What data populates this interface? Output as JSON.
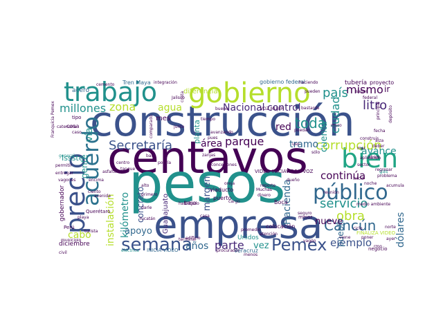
{
  "words": [
    {
      "text": "construcción",
      "color": "#3b528b"
    },
    {
      "text": "centavos",
      "color": "#440154"
    },
    {
      "text": "pesos",
      "color": "#21918c"
    },
    {
      "text": "empresa",
      "color": "#3b528b"
    },
    {
      "text": "trabajo",
      "color": "#21918c"
    },
    {
      "text": "gobierno",
      "color": "#b5de2b"
    },
    {
      "text": "bien",
      "color": "#21a585"
    },
    {
      "text": "precio",
      "color": "#3b528b"
    },
    {
      "text": "acuerdo",
      "color": "#2c728e"
    },
    {
      "text": "público",
      "color": "#31688e"
    },
    {
      "text": "semana",
      "color": "#3b528b"
    },
    {
      "text": "Pemex",
      "color": "#3b528b"
    },
    {
      "text": "parte",
      "color": "#482878"
    },
    {
      "text": "Cancún",
      "color": "#31688e"
    },
    {
      "text": "servicio",
      "color": "#21918c"
    },
    {
      "text": "obra",
      "color": "#b5de2b"
    },
    {
      "text": "corrupción",
      "color": "#b5de2b"
    },
    {
      "text": "Secretaría",
      "color": "#3b528b"
    },
    {
      "text": "toda",
      "color": "#21918c"
    },
    {
      "text": "país",
      "color": "#21918c"
    },
    {
      "text": "mismo",
      "color": "#440154"
    },
    {
      "text": "litro",
      "color": "#482878"
    },
    {
      "text": "millones",
      "color": "#21918c"
    },
    {
      "text": "zona",
      "color": "#b5de2b"
    },
    {
      "text": "agua",
      "color": "#b5de2b"
    },
    {
      "text": "Nacional",
      "color": "#482878"
    },
    {
      "text": "control",
      "color": "#482878"
    },
    {
      "text": "parque",
      "color": "#440154"
    },
    {
      "text": "área",
      "color": "#440154"
    },
    {
      "text": "red",
      "color": "#440154"
    },
    {
      "text": "ciudad",
      "color": "#21918c"
    },
    {
      "text": "tramo",
      "color": "#31688e"
    },
    {
      "text": "avance",
      "color": "#21918c"
    },
    {
      "text": "continúa",
      "color": "#440154"
    },
    {
      "text": "cuenta",
      "color": "#21918c"
    },
    {
      "text": "Hacienda",
      "color": "#31688e"
    },
    {
      "text": "margen",
      "color": "#3b528b"
    },
    {
      "text": "instalación",
      "color": "#b5de2b"
    },
    {
      "text": "kilómetro",
      "color": "#21918c"
    },
    {
      "text": "vía",
      "color": "#21918c"
    },
    {
      "text": "concreto",
      "color": "#3b528b"
    },
    {
      "text": "gente",
      "color": "#21918c"
    },
    {
      "text": "apoyo",
      "color": "#31688e"
    },
    {
      "text": "cabo",
      "color": "#b5de2b"
    },
    {
      "text": "años",
      "color": "#31688e"
    },
    {
      "text": "vez",
      "color": "#21918c"
    },
    {
      "text": "ejemplo",
      "color": "#3b528b"
    },
    {
      "text": "nueve",
      "color": "#440154"
    },
    {
      "text": "pueblo",
      "color": "#31688e"
    },
    {
      "text": "dólares",
      "color": "#31688e"
    },
    {
      "text": "ir",
      "color": "#440154"
    },
    {
      "text": "Issste",
      "color": "#21918c"
    },
    {
      "text": "acero",
      "color": "#31688e"
    },
    {
      "text": "Tren Maya",
      "color": "#31688e"
    },
    {
      "text": "diferencia",
      "color": "#b5de2b"
    },
    {
      "text": "gobierno federal",
      "color": "#31688e"
    },
    {
      "text": "tubería",
      "color": "#440154"
    },
    {
      "text": "proyecto",
      "color": "#440154"
    },
    {
      "text": "mes",
      "color": "#440154"
    },
    {
      "text": "Guanajuato",
      "color": "#482878"
    },
    {
      "text": "Querétaro",
      "color": "#440154"
    },
    {
      "text": "gobernador",
      "color": "#440154"
    },
    {
      "text": "diciembre",
      "color": "#440154"
    },
    {
      "text": "Unidos",
      "color": "#21918c"
    },
    {
      "text": "Veracruz",
      "color": "#31688e"
    },
    {
      "text": "puerto",
      "color": "#440154"
    },
    {
      "text": "bajo",
      "color": "#440154"
    },
    {
      "text": "viaducto",
      "color": "#440154"
    },
    {
      "text": "colocación",
      "color": "#440154"
    },
    {
      "text": "Boca",
      "color": "#440154"
    },
    {
      "text": "VIDEO INICIA",
      "color": "#440154"
    },
    {
      "text": "VIDEO VOZ",
      "color": "#440154"
    },
    {
      "text": "tipo",
      "color": "#440154"
    },
    {
      "text": "cosa",
      "color": "#440154"
    },
    {
      "text": "planta",
      "color": "#21918c"
    },
    {
      "text": "mejor",
      "color": "#440154"
    },
    {
      "text": "Perú",
      "color": "#440154"
    },
    {
      "text": "municipio",
      "color": "#440154"
    },
    {
      "text": "negocio",
      "color": "#440154"
    },
    {
      "text": "medio ambiente",
      "color": "#440154"
    },
    {
      "text": "FINALIZA VIDEO",
      "color": "#b5de2b"
    },
    {
      "text": "INICIA VIDEO",
      "color": "#31688e"
    },
    {
      "text": "integración",
      "color": "#440154"
    },
    {
      "text": "tiempo",
      "color": "#440154"
    },
    {
      "text": "bastante",
      "color": "#440154"
    },
    {
      "text": "terminal",
      "color": "#440154"
    },
    {
      "text": "eléctrica",
      "color": "#21918c"
    },
    {
      "text": "Yucatán",
      "color": "#440154"
    },
    {
      "text": "Jalisco",
      "color": "#440154"
    },
    {
      "text": "federal",
      "color": "#440154"
    },
    {
      "text": "Muchas",
      "color": "#440154"
    },
    {
      "text": "dinero",
      "color": "#440154"
    },
    {
      "text": "turista",
      "color": "#440154"
    },
    {
      "text": "gas",
      "color": "#21918c"
    },
    {
      "text": "avanzando",
      "color": "#440154"
    },
    {
      "text": "saber",
      "color": "#440154"
    },
    {
      "text": "sólo",
      "color": "#440154"
    },
    {
      "text": "casa",
      "color": "#440154"
    },
    {
      "text": "caso",
      "color": "#440154"
    },
    {
      "text": "habilitado",
      "color": "#440154"
    },
    {
      "text": "catenaria",
      "color": "#440154"
    },
    {
      "text": "edificio",
      "color": "#440154"
    },
    {
      "text": "base",
      "color": "#440154"
    },
    {
      "text": "cargo",
      "color": "#440154"
    },
    {
      "text": "promedio",
      "color": "#440154"
    },
    {
      "text": "reporte",
      "color": "#440154"
    },
    {
      "text": "atención",
      "color": "#440154"
    },
    {
      "text": "procurador",
      "color": "#440154"
    },
    {
      "text": "fecha",
      "color": "#440154"
    },
    {
      "text": "problema",
      "color": "#440154"
    },
    {
      "text": "permitir",
      "color": "#440154"
    },
    {
      "text": "general",
      "color": "#21918c"
    },
    {
      "text": "Franquicia Pemex",
      "color": "#440154"
    },
    {
      "text": "alto",
      "color": "#440154"
    },
    {
      "text": "primero",
      "color": "#440154"
    },
    {
      "text": "junto",
      "color": "#440154"
    },
    {
      "text": "VOZ MUJER",
      "color": "#440154"
    },
    {
      "text": "reunión",
      "color": "#440154"
    },
    {
      "text": "bueno",
      "color": "#440154"
    },
    {
      "text": "construir",
      "color": "#440154"
    },
    {
      "text": "puedan",
      "color": "#440154"
    },
    {
      "text": "darle",
      "color": "#440154"
    },
    {
      "text": "tanque",
      "color": "#440154"
    },
    {
      "text": "concesiones",
      "color": "#440154"
    },
    {
      "text": "zanjas",
      "color": "#440154"
    },
    {
      "text": "centro",
      "color": "#440154"
    },
    {
      "text": "costa",
      "color": "#440154"
    },
    {
      "text": "comparado",
      "color": "#440154"
    },
    {
      "text": "sector",
      "color": "#440154"
    },
    {
      "text": "vagón",
      "color": "#440154"
    },
    {
      "text": "entregar",
      "color": "#440154"
    },
    {
      "text": "ciento",
      "color": "#440154"
    },
    {
      "text": "ayer",
      "color": "#440154"
    },
    {
      "text": "aplicación",
      "color": "#440154"
    },
    {
      "text": "haciendo",
      "color": "#440154"
    },
    {
      "text": "deber",
      "color": "#440154"
    },
    {
      "text": "seguro",
      "color": "#440154"
    },
    {
      "text": "uso",
      "color": "#440154"
    },
    {
      "text": "rmo",
      "color": "#440154"
    },
    {
      "text": "menos",
      "color": "#440154"
    },
    {
      "text": "avenida",
      "color": "#440154"
    },
    {
      "text": "pueden",
      "color": "#440154"
    },
    {
      "text": "podría",
      "color": "#440154"
    },
    {
      "text": "encima",
      "color": "#440154"
    },
    {
      "text": "oreja",
      "color": "#440154"
    },
    {
      "text": "pues",
      "color": "#440154"
    },
    {
      "text": "civil",
      "color": "#440154"
    },
    {
      "text": "cemento",
      "color": "#440154"
    },
    {
      "text": "asfalto",
      "color": "#440154"
    },
    {
      "text": "playa",
      "color": "#440154"
    },
    {
      "text": "regresar",
      "color": "#440154"
    },
    {
      "text": "vagones",
      "color": "#440154"
    },
    {
      "text": "inicio",
      "color": "#440154"
    },
    {
      "text": "muro",
      "color": "#440154"
    },
    {
      "text": "abajo",
      "color": "#440154"
    },
    {
      "text": "principal",
      "color": "#440154"
    },
    {
      "text": "depósito",
      "color": "#440154"
    },
    {
      "text": "noche",
      "color": "#440154"
    },
    {
      "text": "acumula",
      "color": "#440154"
    },
    {
      "text": "ciclo",
      "color": "#440154"
    },
    {
      "text": "norte",
      "color": "#440154"
    },
    {
      "text": "poner",
      "color": "#440154"
    },
    {
      "text": "viene",
      "color": "#440154"
    },
    {
      "text": "dueño",
      "color": "#440154"
    },
    {
      "text": "mar",
      "color": "#440154"
    },
    {
      "text": "alza",
      "color": "#440154"
    },
    {
      "text": "gasolina",
      "color": "#440154"
    }
  ]
}
